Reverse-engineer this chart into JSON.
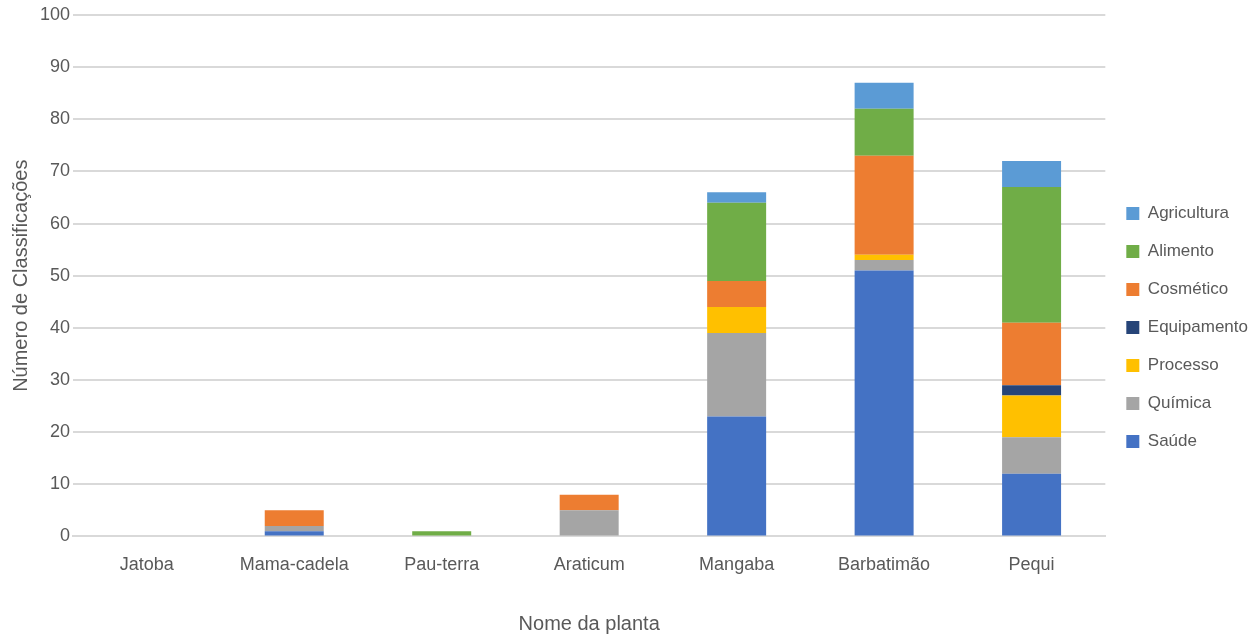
{
  "chart_data": {
    "type": "bar",
    "stacked": true,
    "xlabel": "Nome da planta",
    "ylabel": "Número de Classificações",
    "categories": [
      "Jatoba",
      "Mama-cadela",
      "Pau-terra",
      "Araticum",
      "Mangaba",
      "Barbatimão",
      "Pequi"
    ],
    "series": [
      {
        "name": "Saúde",
        "color": "#4472c4",
        "values": [
          0,
          1,
          0,
          0,
          23,
          51,
          12
        ]
      },
      {
        "name": "Química",
        "color": "#a5a5a5",
        "values": [
          0,
          1,
          0,
          5,
          16,
          2,
          7
        ]
      },
      {
        "name": "Processo",
        "color": "#ffc000",
        "values": [
          0,
          0,
          0,
          0,
          5,
          1,
          8
        ]
      },
      {
        "name": "Equipamento",
        "color": "#264478",
        "values": [
          0,
          0,
          0,
          0,
          0,
          0,
          2
        ]
      },
      {
        "name": "Cosmético",
        "color": "#ed7d31",
        "values": [
          0,
          3,
          0,
          3,
          5,
          19,
          12
        ]
      },
      {
        "name": "Alimento",
        "color": "#70ad47",
        "values": [
          0,
          0,
          1,
          0,
          15,
          9,
          26
        ]
      },
      {
        "name": "Agricultura",
        "color": "#5b9bd5",
        "values": [
          0,
          0,
          0,
          0,
          2,
          5,
          5
        ]
      }
    ],
    "ylim": [
      0,
      100
    ],
    "yticks": [
      0,
      10,
      20,
      30,
      40,
      50,
      60,
      70,
      80,
      90,
      100
    ],
    "grid": "y",
    "legend": "right"
  }
}
